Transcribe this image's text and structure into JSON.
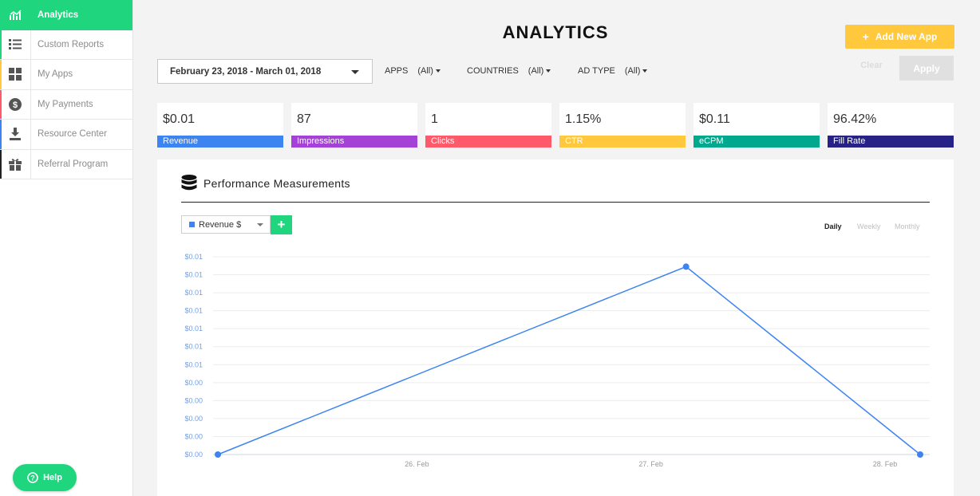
{
  "sidebar": {
    "items": [
      {
        "label": "Analytics",
        "icon": "analytics-icon",
        "active": true,
        "color": "#1fd67f"
      },
      {
        "label": "Custom Reports",
        "icon": "list-icon",
        "active": false,
        "color": "#1fd67f"
      },
      {
        "label": "My Apps",
        "icon": "apps-grid-icon",
        "active": false,
        "color": "#ffc83d"
      },
      {
        "label": "My Payments",
        "icon": "dollar-icon",
        "active": false,
        "color": "#ff5a6a"
      },
      {
        "label": "Resource Center",
        "icon": "download-icon",
        "active": false,
        "color": "#3d84f1"
      },
      {
        "label": "Referral Program",
        "icon": "gift-icon",
        "active": false,
        "color": "#222222"
      }
    ],
    "help_label": "Help"
  },
  "header": {
    "title": "ANALYTICS",
    "add_app_label": "Add New App"
  },
  "filters": {
    "date_range": "February 23, 2018 - March 01, 2018",
    "apps": {
      "label": "APPS",
      "value": "(All)"
    },
    "countries": {
      "label": "COUNTRIES",
      "value": "(All)"
    },
    "ad_type": {
      "label": "AD TYPE",
      "value": "(All)"
    },
    "clear_label": "Clear",
    "apply_label": "Apply"
  },
  "stats": [
    {
      "value": "$0.01",
      "label": "Revenue",
      "color": "#3d84f1"
    },
    {
      "value": "87",
      "label": "Impressions",
      "color": "#a441d6"
    },
    {
      "value": "1",
      "label": "Clicks",
      "color": "#ff5a6a"
    },
    {
      "value": "1.15%",
      "label": "CTR",
      "color": "#ffc83d"
    },
    {
      "value": "$0.11",
      "label": "eCPM",
      "color": "#00a98d"
    },
    {
      "value": "96.42%",
      "label": "Fill Rate",
      "color": "#262286"
    }
  ],
  "panel": {
    "title": "Performance Measurements",
    "metric_label": "Revenue $",
    "periods": [
      "Daily",
      "Weekly",
      "Monthly"
    ],
    "active_period": "Daily"
  },
  "chart_data": {
    "type": "line",
    "x": [
      "26. Feb",
      "27. Feb",
      "28. Feb"
    ],
    "y_tick_labels": [
      "$0.01",
      "$0.01",
      "$0.01",
      "$0.01",
      "$0.01",
      "$0.01",
      "$0.01",
      "$0.00",
      "$0.00",
      "$0.00",
      "$0.00",
      "$0.00"
    ],
    "series": [
      {
        "values": [
          {
            "x": "2018-02-25",
            "y": 0.0
          },
          {
            "x": "2018-02-27",
            "y": 0.0095
          },
          {
            "x": "2018-02-28",
            "y": 0.0
          }
        ],
        "color": "#3d84f1"
      }
    ],
    "ylim": [
      0,
      0.01
    ],
    "grid": true,
    "legend": "none"
  }
}
